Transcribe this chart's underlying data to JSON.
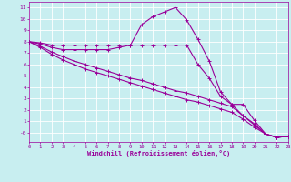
{
  "xlabel": "Windchill (Refroidissement éolien,°C)",
  "background_color": "#c8eef0",
  "line_color": "#990099",
  "grid_color": "#ffffff",
  "x_hours": [
    0,
    1,
    2,
    3,
    4,
    5,
    6,
    7,
    8,
    9,
    10,
    11,
    12,
    13,
    14,
    15,
    16,
    17,
    18,
    19,
    20,
    21,
    22,
    23
  ],
  "line1_y": [
    8.0,
    7.9,
    7.7,
    7.7,
    7.7,
    7.7,
    7.7,
    7.7,
    7.7,
    7.7,
    9.5,
    10.2,
    10.6,
    11.0,
    9.9,
    8.2,
    6.3,
    3.6,
    2.5,
    2.5,
    1.1,
    -0.1,
    -0.4,
    -0.3
  ],
  "line2_y": [
    8.0,
    7.8,
    7.5,
    7.3,
    7.3,
    7.3,
    7.3,
    7.3,
    7.5,
    7.7,
    7.7,
    7.7,
    7.7,
    7.7,
    7.7,
    6.0,
    4.8,
    3.2,
    2.5,
    1.5,
    0.8,
    -0.1,
    -0.4,
    -0.3
  ],
  "line3_y": [
    8.0,
    7.6,
    7.1,
    6.7,
    6.3,
    6.0,
    5.7,
    5.4,
    5.1,
    4.8,
    4.6,
    4.3,
    4.0,
    3.7,
    3.5,
    3.2,
    2.9,
    2.6,
    2.3,
    1.5,
    0.7,
    -0.1,
    -0.4,
    -0.3
  ],
  "line4_y": [
    8.0,
    7.5,
    6.9,
    6.4,
    6.0,
    5.6,
    5.3,
    5.0,
    4.7,
    4.4,
    4.1,
    3.8,
    3.5,
    3.2,
    2.9,
    2.7,
    2.4,
    2.1,
    1.8,
    1.2,
    0.5,
    -0.1,
    -0.4,
    -0.3
  ],
  "ylim": [
    -0.8,
    11.5
  ],
  "xlim": [
    0,
    23
  ],
  "yticks": [
    0,
    1,
    2,
    3,
    4,
    5,
    6,
    7,
    8,
    9,
    10,
    11
  ],
  "xticks": [
    0,
    1,
    2,
    3,
    4,
    5,
    6,
    7,
    8,
    9,
    10,
    11,
    12,
    13,
    14,
    15,
    16,
    17,
    18,
    19,
    20,
    21,
    22,
    23
  ]
}
